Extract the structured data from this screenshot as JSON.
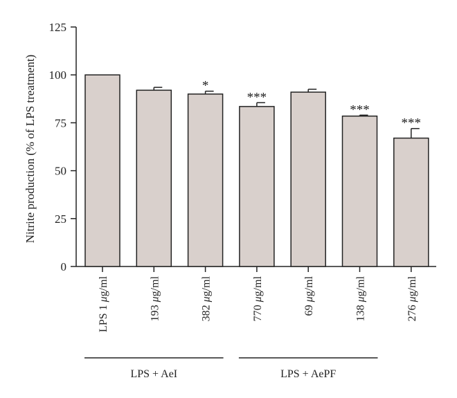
{
  "chart_data": {
    "type": "bar",
    "ylabel": "Nitrite production (% of LPS treatment)",
    "xlabel": "",
    "ylim": [
      0,
      125
    ],
    "yticks": [
      0,
      25,
      50,
      75,
      100,
      125
    ],
    "grid": false,
    "categories": [
      [
        "LPS 1 ",
        "μ",
        "g/ml"
      ],
      [
        "193 ",
        "μ",
        "g/ml"
      ],
      [
        "382 ",
        "μ",
        "g/ml"
      ],
      [
        "770 ",
        "μ",
        "g/ml"
      ],
      [
        "69 ",
        "μ",
        "g/ml"
      ],
      [
        "138 ",
        "μ",
        "g/ml"
      ],
      [
        "276 ",
        "μ",
        "g/ml"
      ]
    ],
    "values": [
      100,
      92,
      90,
      83.5,
      91,
      78.5,
      67
    ],
    "errors": [
      0,
      1.5,
      1.5,
      2,
      1.5,
      0.5,
      5
    ],
    "significance": [
      "",
      "",
      "*",
      "***",
      "",
      "***",
      "***"
    ],
    "groups": [
      {
        "label": "LPS + AeI",
        "from": 0,
        "to": 2
      },
      {
        "label": "LPS + AePF",
        "from": 3,
        "to": 5
      }
    ],
    "bar_color": "#d9d0cc",
    "edge_color": "#222222"
  }
}
